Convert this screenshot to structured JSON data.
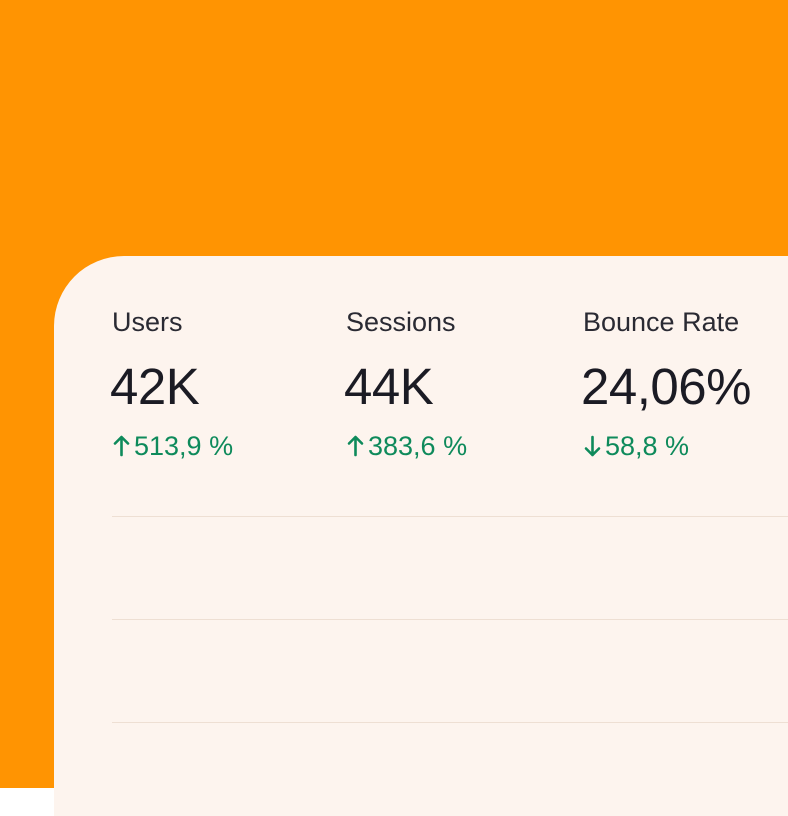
{
  "metrics": [
    {
      "label": "Users",
      "value": "42K",
      "change": "513,9 %",
      "direction": "up",
      "arrow_icon": "arrow-up-icon"
    },
    {
      "label": "Sessions",
      "value": "44K",
      "change": "383,6 %",
      "direction": "up",
      "arrow_icon": "arrow-up-icon"
    },
    {
      "label": "Bounce Rate",
      "value": "24,06%",
      "change": "58,8 %",
      "direction": "down",
      "arrow_icon": "arrow-down-icon"
    }
  ],
  "colors": {
    "background": "#FF9402",
    "card": "#FDF4EE",
    "text": "#1B1B24",
    "positive": "#0E8A5B",
    "divider": "#EEDFD3"
  }
}
